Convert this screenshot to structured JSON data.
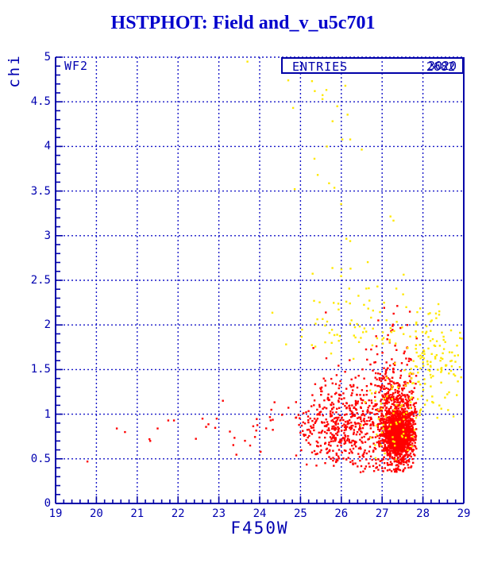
{
  "chart_data": {
    "type": "scatter",
    "title": "HSTPHOT: Field and_v_u5c701",
    "xlabel": "F450W",
    "ylabel": "chi",
    "annotation": "WF2",
    "xlim": [
      19,
      29
    ],
    "ylim": [
      0,
      5
    ],
    "x_major_ticks": [
      "19",
      "20",
      "21",
      "22",
      "23",
      "24",
      "25",
      "26",
      "27",
      "28",
      "29"
    ],
    "y_major_ticks": [
      "0",
      "0.5",
      "1",
      "1.5",
      "2",
      "2.5",
      "3",
      "3.5",
      "4",
      "4.5",
      "5"
    ],
    "x_minor_step": 0.2,
    "y_minor_step": 0.1,
    "grid": "dotted blue lines at every integer x and every 0.5 y",
    "legend_position": "none",
    "stats": {
      "label": "ENTRIES",
      "values": [
        "2682",
        "3020"
      ]
    },
    "colors": {
      "title": "#0000CC",
      "axis": "#0000A8",
      "labels": "#0000B0",
      "grid": "#1818C8",
      "red_points": "#FF0000",
      "yellow_points": "#FFE800"
    },
    "seed": 7,
    "series": [
      {
        "name": "red-points",
        "color": "#FF0000"
      },
      {
        "name": "yellow-points",
        "color": "#FFE800"
      }
    ],
    "clusters": [
      {
        "series": "red-points",
        "n": 1150,
        "x": {
          "dist": "gauss",
          "mean": 27.4,
          "sd": 0.22,
          "min": 26.7,
          "max": 27.85
        },
        "y": {
          "dist": "gauss",
          "mean": 0.8,
          "sd": 0.17,
          "min": 0.45,
          "max": 1.35
        }
      },
      {
        "series": "red-points",
        "n": 380,
        "x": {
          "dist": "gauss",
          "mean": 27.45,
          "sd": 0.13,
          "min": 27.0,
          "max": 27.85
        },
        "y": {
          "dist": "gauss",
          "mean": 0.78,
          "sd": 0.1,
          "min": 0.5,
          "max": 1.1
        }
      },
      {
        "series": "red-points",
        "n": 470,
        "x": {
          "dist": "gauss",
          "mean": 26.15,
          "sd": 0.62,
          "min": 24.2,
          "max": 27.3
        },
        "y": {
          "dist": "gauss",
          "mean": 0.84,
          "sd": 0.22,
          "min": 0.4,
          "max": 1.5
        }
      },
      {
        "series": "red-points",
        "n": 150,
        "x": {
          "dist": "gauss",
          "mean": 27.3,
          "sd": 0.3,
          "min": 26.3,
          "max": 27.85
        },
        "y": {
          "dist": "expo",
          "base": 1.15,
          "scale": 0.3,
          "max": 2.25
        }
      },
      {
        "series": "red-points",
        "n": 95,
        "x": {
          "dist": "gauss",
          "mean": 26.7,
          "sd": 0.7,
          "min": 24.8,
          "max": 27.85
        },
        "y": {
          "dist": "expo",
          "base": 1.05,
          "scale": 0.25,
          "max": 1.75
        }
      },
      {
        "series": "red-points",
        "n": 65,
        "x": {
          "dist": "gauss",
          "mean": 27.1,
          "sd": 0.45,
          "min": 25.7,
          "max": 27.8
        },
        "y": {
          "dist": "uniform",
          "min": 0.35,
          "max": 0.5
        }
      },
      {
        "series": "red-points",
        "n": 22,
        "x": {
          "dist": "uniform",
          "min": 22.3,
          "max": 24.4
        },
        "y": {
          "dist": "gauss",
          "mean": 0.85,
          "sd": 0.15,
          "min": 0.5,
          "max": 1.2
        }
      },
      {
        "series": "yellow-points",
        "n": 120,
        "x": {
          "dist": "gauss",
          "mean": 28.15,
          "sd": 0.33,
          "min": 27.5,
          "max": 28.95
        },
        "y": {
          "dist": "gauss",
          "mean": 1.55,
          "sd": 0.33,
          "min": 0.95,
          "max": 2.3
        }
      },
      {
        "series": "yellow-points",
        "n": 85,
        "x": {
          "dist": "gauss",
          "mean": 26.5,
          "sd": 0.8,
          "min": 24.3,
          "max": 28.3
        },
        "y": {
          "dist": "expo",
          "base": 1.75,
          "scale": 0.55,
          "max": 3.45
        }
      },
      {
        "series": "yellow-points",
        "n": 16,
        "x": {
          "dist": "gauss",
          "mean": 25.8,
          "sd": 0.8,
          "min": 24.3,
          "max": 27.3
        },
        "y": {
          "dist": "uniform",
          "min": 3.4,
          "max": 4.75
        }
      },
      {
        "series": "yellow-points",
        "n": 60,
        "x": {
          "dist": "gauss",
          "mean": 27.35,
          "sd": 0.4,
          "min": 26.3,
          "max": 27.9
        },
        "y": {
          "dist": "gauss",
          "mean": 0.95,
          "sd": 0.3,
          "min": 0.45,
          "max": 1.6
        }
      },
      {
        "series": "yellow-points",
        "n": 18,
        "x": {
          "dist": "uniform",
          "min": 28.5,
          "max": 28.97
        },
        "y": {
          "dist": "uniform",
          "min": 1.15,
          "max": 1.95
        }
      }
    ],
    "extra_points": [
      {
        "series": "red-points",
        "pts": [
          [
            19.78,
            0.47
          ],
          [
            20.5,
            0.84
          ],
          [
            20.7,
            0.8
          ],
          [
            21.3,
            0.72
          ],
          [
            21.32,
            0.7
          ],
          [
            21.5,
            0.84
          ],
          [
            21.76,
            0.93
          ],
          [
            21.9,
            0.93
          ],
          [
            22.6,
            0.95
          ],
          [
            23.1,
            1.15
          ],
          [
            25.62,
            2.14
          ]
        ]
      },
      {
        "series": "yellow-points",
        "pts": [
          [
            24.7,
            4.74
          ],
          [
            25.35,
            4.62
          ],
          [
            25.9,
            4.45
          ],
          [
            26.1,
            4.68
          ],
          [
            23.7,
            4.95
          ],
          [
            25.75,
            1.68
          ],
          [
            26.3,
            1.62
          ]
        ]
      }
    ]
  }
}
